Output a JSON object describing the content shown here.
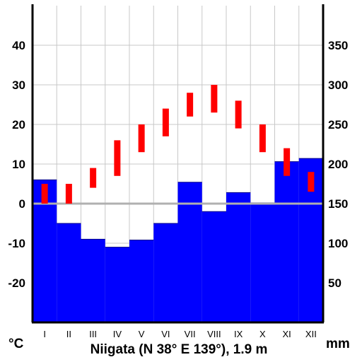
{
  "chart_data": {
    "type": "climate-diagram",
    "title": "Niigata (N 38° E 139°), 1.9 m",
    "left_unit": "°C",
    "right_unit": "mm",
    "months": [
      "I",
      "II",
      "III",
      "IV",
      "V",
      "VI",
      "VII",
      "VIII",
      "IX",
      "X",
      "XI",
      "XII"
    ],
    "left_ticks": [
      "40",
      "30",
      "20",
      "10",
      "0",
      "-10",
      "-20"
    ],
    "left_tick_values": [
      40,
      30,
      20,
      10,
      0,
      -10,
      -20
    ],
    "right_ticks": [
      "350",
      "300",
      "250",
      "200",
      "150",
      "100",
      "50"
    ],
    "right_tick_values": [
      350,
      300,
      250,
      200,
      150,
      100,
      50
    ],
    "temperature_ylim": [
      -30,
      50
    ],
    "precipitation_ylim": [
      0,
      400
    ],
    "precipitation_mm": [
      180,
      125,
      105,
      95,
      104,
      125,
      177,
      140,
      164,
      151,
      203,
      207
    ],
    "temperature_range_c": [
      [
        0,
        5
      ],
      [
        0,
        5
      ],
      [
        4,
        9
      ],
      [
        7,
        16
      ],
      [
        13,
        20
      ],
      [
        17,
        24
      ],
      [
        22,
        28
      ],
      [
        23,
        30
      ],
      [
        19,
        26
      ],
      [
        13,
        20
      ],
      [
        7,
        14
      ],
      [
        3,
        8
      ]
    ],
    "colors": {
      "precipitation": "#0000ff",
      "temperature": "#ff0000",
      "zero_line": "#b0b0b0",
      "grid": "#c8c8c8",
      "axis": "#000000"
    },
    "grid": true
  }
}
